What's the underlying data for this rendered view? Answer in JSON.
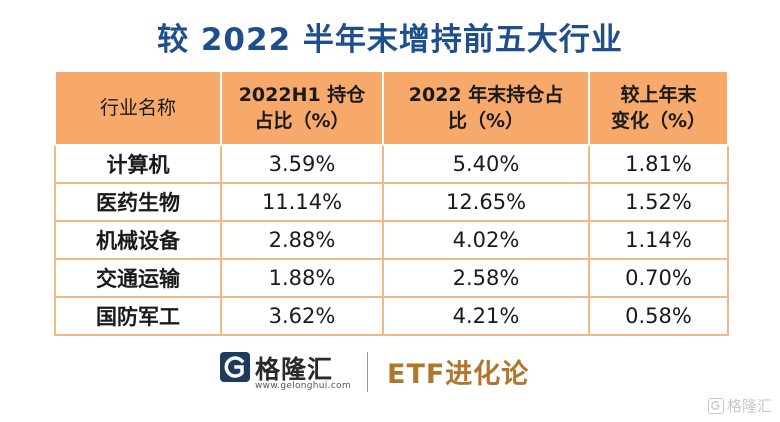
{
  "title": "较 2022 半年末增持前五大行业",
  "table": {
    "headers": [
      [
        "行业名称"
      ],
      [
        "2022H1 持仓",
        "占比（%）"
      ],
      [
        "2022 年末持仓占",
        "比（%）"
      ],
      [
        "较上年末",
        "变化（%）"
      ]
    ],
    "rows": [
      [
        "计算机",
        "3.59%",
        "5.40%",
        "1.81%"
      ],
      [
        "医药生物",
        "11.14%",
        "12.65%",
        "1.52%"
      ],
      [
        "机械设备",
        "2.88%",
        "4.02%",
        "1.14%"
      ],
      [
        "交通运输",
        "1.88%",
        "2.58%",
        "0.70%"
      ],
      [
        "国防军工",
        "3.62%",
        "4.21%",
        "0.58%"
      ]
    ]
  },
  "footer": {
    "logo_text": "格隆汇",
    "logo_url": "www.gelonghui.com",
    "brand": "ETF进化论"
  },
  "watermark": {
    "text": "格隆汇"
  },
  "colors": {
    "title": "#1f4e8c",
    "header_bg": "#f6a96b",
    "brand": "#b0762c"
  }
}
